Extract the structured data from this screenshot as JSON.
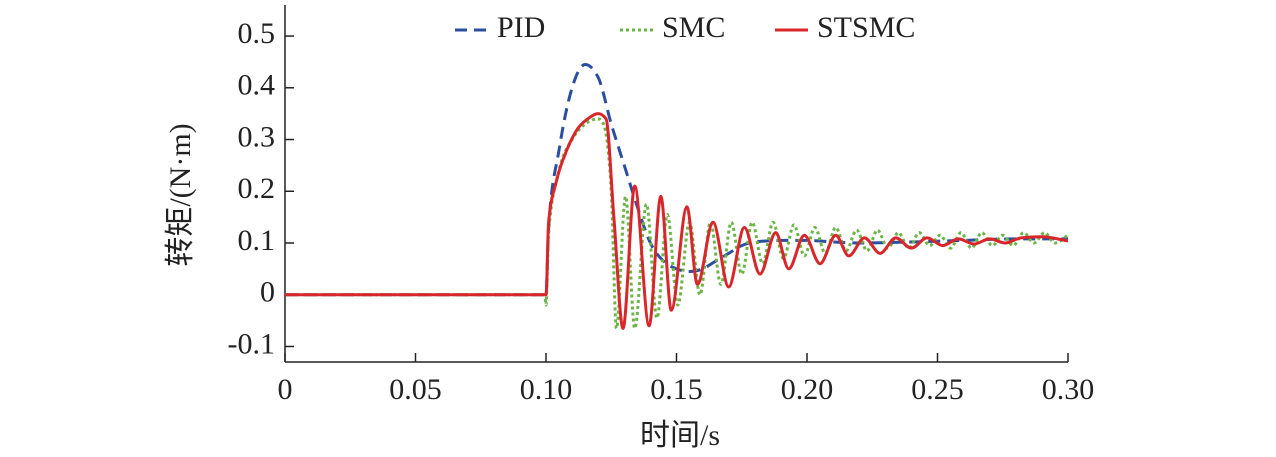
{
  "chart_data": {
    "type": "line",
    "xlabel": "时间/s",
    "ylabel": "转矩/(N·m)",
    "xlim": [
      0,
      0.3
    ],
    "ylim": [
      -0.13,
      0.56
    ],
    "xticks": [
      0,
      0.05,
      {
        "value": 0.1,
        "label": "0.10"
      },
      0.15,
      {
        "value": 0.2,
        "label": "0.20"
      },
      0.25,
      {
        "value": 0.3,
        "label": "0.30"
      }
    ],
    "yticks": [
      -0.1,
      0,
      0.1,
      0.2,
      0.3,
      0.4,
      0.5
    ],
    "legend": "upper center",
    "series": [
      {
        "name": "PID",
        "color": "#2b4f9e",
        "dash": "dashed",
        "x": [
          0,
          0.1,
          0.101,
          0.105,
          0.11,
          0.115,
          0.12,
          0.125,
          0.13,
          0.135,
          0.14,
          0.145,
          0.15,
          0.155,
          0.16,
          0.165,
          0.17,
          0.175,
          0.18,
          0.19,
          0.2,
          0.21,
          0.22,
          0.24,
          0.26,
          0.28,
          0.3
        ],
        "values": [
          0,
          0,
          0.13,
          0.28,
          0.4,
          0.445,
          0.42,
          0.33,
          0.25,
          0.17,
          0.1,
          0.065,
          0.05,
          0.045,
          0.05,
          0.065,
          0.08,
          0.095,
          0.102,
          0.105,
          0.105,
          0.102,
          0.1,
          0.102,
          0.105,
          0.108,
          0.108
        ]
      },
      {
        "name": "SMC",
        "color": "#6ab545",
        "dash": "dotted",
        "x": [
          0,
          0.0995,
          0.1,
          0.101,
          0.105,
          0.11,
          0.115,
          0.12,
          0.122,
          0.125,
          0.127,
          0.1305,
          0.134,
          0.1385,
          0.1425,
          0.1465,
          0.1505,
          0.155,
          0.159,
          0.163,
          0.167,
          0.171,
          0.175,
          0.179,
          0.183,
          0.187,
          0.191,
          0.195,
          0.199,
          0.203,
          0.207,
          0.211,
          0.215,
          0.219,
          0.223,
          0.227,
          0.231,
          0.235,
          0.239,
          0.243,
          0.247,
          0.251,
          0.255,
          0.259,
          0.263,
          0.267,
          0.271,
          0.275,
          0.279,
          0.283,
          0.287,
          0.291,
          0.295,
          0.3
        ],
        "values": [
          0,
          0,
          -0.02,
          0.12,
          0.24,
          0.3,
          0.33,
          0.34,
          0.33,
          0.2,
          -0.065,
          0.19,
          -0.065,
          0.175,
          -0.045,
          0.155,
          -0.02,
          0.14,
          0.0,
          0.14,
          0.02,
          0.14,
          0.04,
          0.14,
          0.06,
          0.14,
          0.07,
          0.135,
          0.075,
          0.13,
          0.08,
          0.13,
          0.085,
          0.125,
          0.085,
          0.125,
          0.09,
          0.12,
          0.09,
          0.12,
          0.095,
          0.115,
          0.09,
          0.12,
          0.09,
          0.12,
          0.095,
          0.115,
          0.095,
          0.12,
          0.1,
          0.12,
          0.1,
          0.115
        ]
      },
      {
        "name": "STSMC",
        "color": "#d9262b",
        "dash": "solid",
        "x": [
          0,
          0.1,
          0.101,
          0.104,
          0.108,
          0.112,
          0.116,
          0.12,
          0.123,
          0.126,
          0.1295,
          0.134,
          0.1395,
          0.144,
          0.148,
          0.154,
          0.158,
          0.164,
          0.17,
          0.176,
          0.182,
          0.188,
          0.193,
          0.199,
          0.205,
          0.211,
          0.216,
          0.222,
          0.228,
          0.234,
          0.24,
          0.246,
          0.252,
          0.258,
          0.264,
          0.27,
          0.276,
          0.282,
          0.29,
          0.3
        ],
        "values": [
          0,
          0,
          0.14,
          0.22,
          0.28,
          0.32,
          0.34,
          0.35,
          0.34,
          0.15,
          -0.065,
          0.21,
          -0.06,
          0.19,
          -0.03,
          0.17,
          0.02,
          0.14,
          0.015,
          0.13,
          0.04,
          0.12,
          0.05,
          0.115,
          0.06,
          0.115,
          0.075,
          0.11,
          0.08,
          0.11,
          0.09,
          0.11,
          0.095,
          0.108,
          0.098,
          0.108,
          0.1,
          0.11,
          0.112,
          0.104
        ]
      }
    ]
  }
}
